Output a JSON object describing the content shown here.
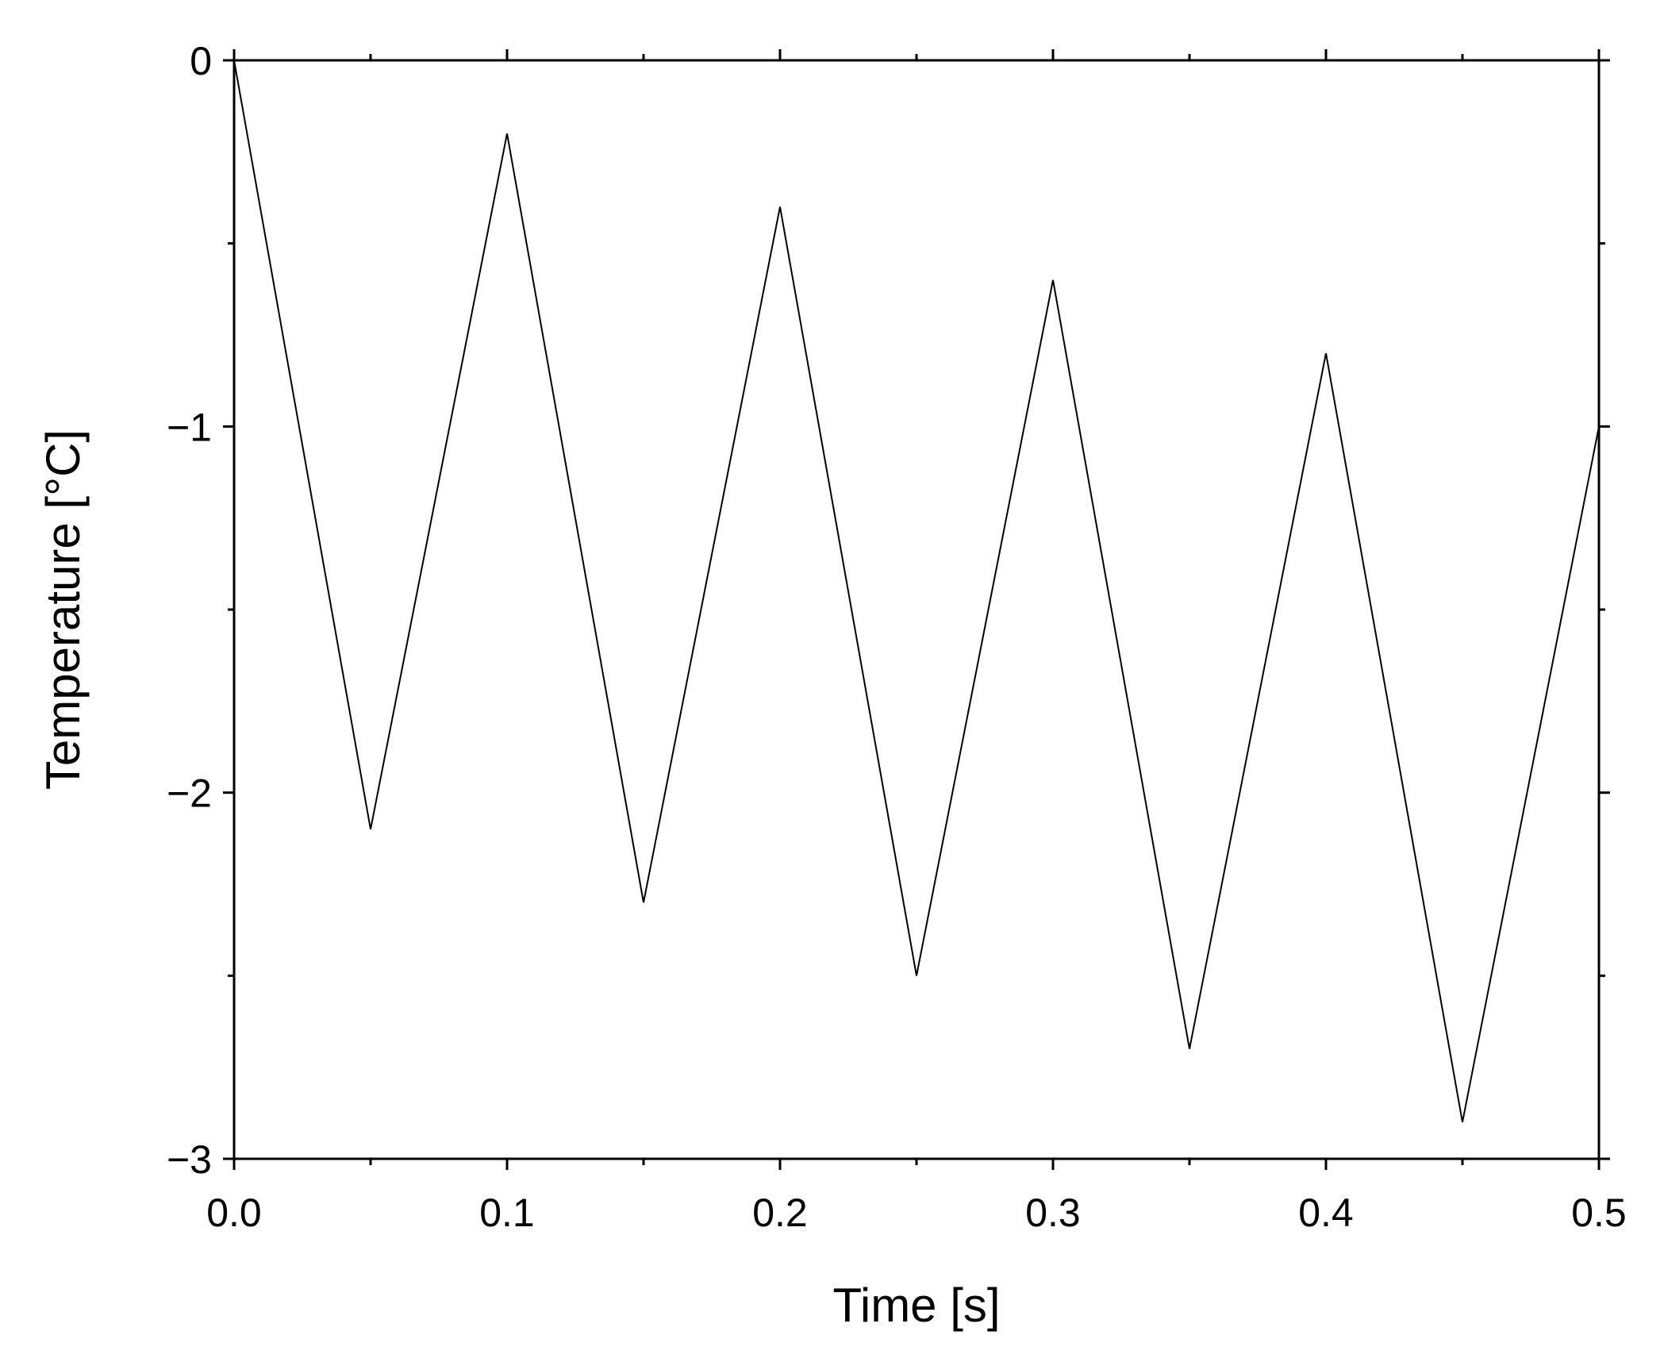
{
  "chart_data": {
    "type": "line",
    "title": "",
    "xlabel": "Time [s]",
    "ylabel": "Temperature [°C]",
    "xlim": [
      0.0,
      0.5
    ],
    "ylim": [
      -3,
      0
    ],
    "grid": false,
    "line_color": "#000000",
    "x_ticks": [
      0.0,
      0.1,
      0.2,
      0.3,
      0.4,
      0.5
    ],
    "x_tick_labels": [
      "0.0",
      "0.1",
      "0.2",
      "0.3",
      "0.4",
      "0.5"
    ],
    "x_minor_ticks": [
      0.05,
      0.15,
      0.25,
      0.35,
      0.45
    ],
    "y_ticks": [
      0,
      -1,
      -2,
      -3
    ],
    "y_tick_labels": [
      "0",
      "−1",
      "−2",
      "−3"
    ],
    "y_minor_ticks": [
      -0.5,
      -1.5,
      -2.5
    ],
    "series": [
      {
        "x": [
          0.0,
          0.05,
          0.1,
          0.15,
          0.2,
          0.25,
          0.3,
          0.35,
          0.4,
          0.45,
          0.5
        ],
        "y": [
          0.0,
          -2.1,
          -0.2,
          -2.3,
          -0.4,
          -2.5,
          -0.6,
          -2.7,
          -0.8,
          -2.9,
          -1.0
        ]
      }
    ]
  }
}
